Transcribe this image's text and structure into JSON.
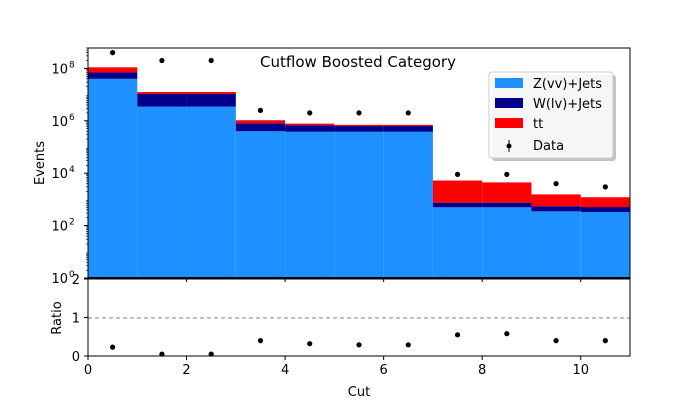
{
  "chart_data": [
    {
      "panel": "main",
      "type": "bar",
      "stacked": true,
      "title": "Cutflow Boosted Category",
      "xlabel": "",
      "ylabel": "Events",
      "yscale": "log",
      "ylim": [
        1,
        600000000
      ],
      "xlim": [
        0,
        11
      ],
      "bin_edges": [
        0,
        1,
        2,
        3,
        4,
        5,
        6,
        7,
        8,
        9,
        10,
        11
      ],
      "x_ticks": [
        "0",
        "2",
        "4",
        "6",
        "8",
        "10"
      ],
      "y_ticks": [
        "10^0",
        "10^2",
        "10^4",
        "10^6",
        "10^8"
      ],
      "series": [
        {
          "name": "Z(νν)+Jets",
          "label": "Z(vv)+Jets",
          "color": "#1e90ff",
          "values": [
            40000000,
            3500000,
            3500000,
            400000,
            380000,
            380000,
            380000,
            500,
            500,
            350,
            330
          ]
        },
        {
          "name": "W(lν)+Jets",
          "label": "W(lv)+Jets",
          "color": "#00008b",
          "values": [
            30000000,
            7000000,
            7000000,
            400000,
            300000,
            250000,
            250000,
            250,
            250,
            200,
            180
          ]
        },
        {
          "name": "tt",
          "label": "tt",
          "color": "#ff0000",
          "values": [
            40000000,
            2000000,
            2000000,
            250000,
            100000,
            70000,
            70000,
            4500,
            3700,
            1000,
            700
          ]
        }
      ],
      "data_points": {
        "name": "Data",
        "label": "Data",
        "x": [
          0.5,
          1.5,
          2.5,
          3.5,
          4.5,
          5.5,
          6.5,
          7.5,
          8.5,
          9.5,
          10.5
        ],
        "y": [
          400000000,
          200000000,
          200000000,
          2500000,
          2000000,
          2000000,
          2000000,
          9000,
          9000,
          4000,
          3000
        ]
      },
      "legend": {
        "position": "top-right",
        "entries": [
          "Z(vv)+Jets",
          "W(lv)+Jets",
          "tt",
          "Data"
        ]
      }
    },
    {
      "panel": "ratio",
      "type": "scatter",
      "xlabel": "Cut",
      "ylabel": "Ratio",
      "ylim": [
        0,
        2
      ],
      "xlim": [
        0,
        11
      ],
      "x_ticks": [
        "0",
        "2",
        "4",
        "6",
        "8",
        "10"
      ],
      "y_ticks": [
        "0",
        "1",
        "2"
      ],
      "reference_line": 1,
      "x": [
        0.5,
        1.5,
        2.5,
        3.5,
        4.5,
        5.5,
        6.5,
        7.5,
        8.5,
        9.5,
        10.5
      ],
      "y": [
        0.23,
        0.05,
        0.05,
        0.4,
        0.32,
        0.29,
        0.29,
        0.55,
        0.58,
        0.4,
        0.4
      ]
    }
  ],
  "colors": {
    "zjets": "#1e90ff",
    "wjets": "#00008b",
    "tt": "#ff0000",
    "data": "#000000",
    "reference_line": "#808080"
  }
}
